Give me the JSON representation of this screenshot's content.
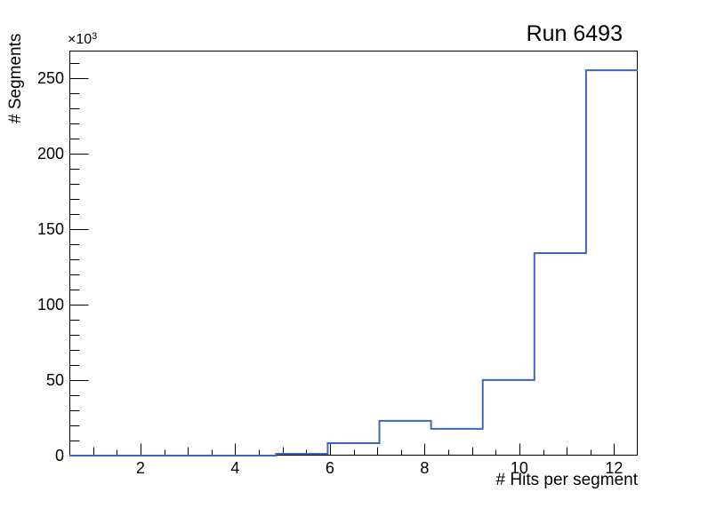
{
  "chart_data": {
    "type": "bar",
    "subtype": "histogram_step",
    "title": "Run 6493",
    "xlabel": "# Hits per segment",
    "ylabel": "# Segments",
    "y_scale_factor": {
      "base": "×10",
      "exponent": "3"
    },
    "xlim": [
      0.5,
      12.5
    ],
    "ylim": [
      0,
      268000
    ],
    "bin_edges": [
      0.5,
      1.5909,
      2.6818,
      3.7727,
      4.8636,
      5.9545,
      7.0455,
      8.1364,
      9.2273,
      10.3182,
      11.4091,
      12.5
    ],
    "values": [
      0,
      0,
      0,
      0,
      1200,
      8200,
      23000,
      17700,
      50000,
      134000,
      255000
    ],
    "x_major_ticks": [
      {
        "value": 2,
        "label": "2"
      },
      {
        "value": 4,
        "label": "4"
      },
      {
        "value": 6,
        "label": "6"
      },
      {
        "value": 8,
        "label": "8"
      },
      {
        "value": 10,
        "label": "10"
      },
      {
        "value": 12,
        "label": "12"
      }
    ],
    "y_major_ticks": [
      {
        "value": 0,
        "label": "0"
      },
      {
        "value": 50000,
        "label": "50"
      },
      {
        "value": 100000,
        "label": "100"
      },
      {
        "value": 150000,
        "label": "150"
      },
      {
        "value": 200000,
        "label": "200"
      },
      {
        "value": 250000,
        "label": "250"
      }
    ],
    "x_minor_tick_step": 0.5,
    "y_minor_tick_step": 10000,
    "grid": false,
    "legend": false,
    "line_color": "#3C69BE",
    "axis_color": "#000000",
    "background_color": "#ffffff"
  }
}
